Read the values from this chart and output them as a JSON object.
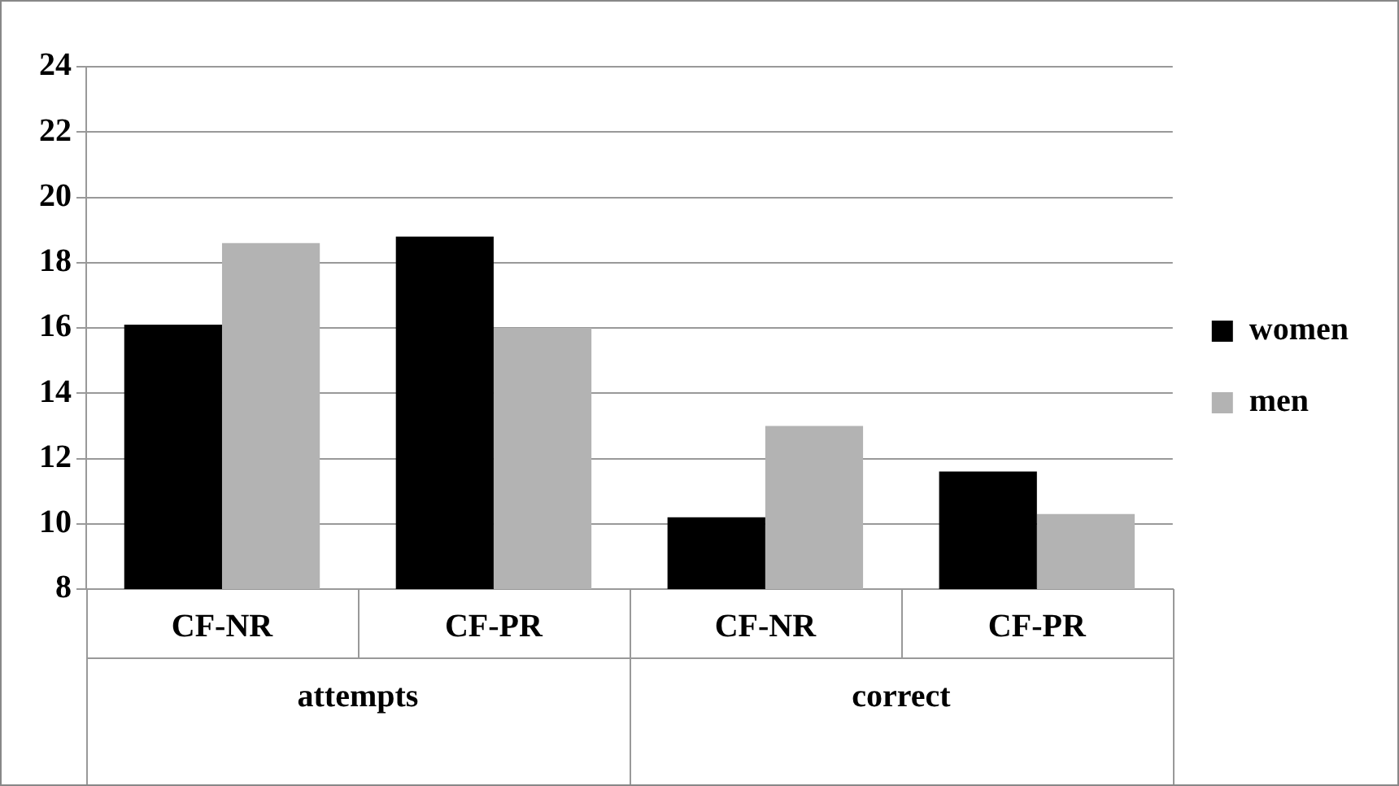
{
  "chart_data": {
    "type": "bar",
    "categories": [
      "CF-NR",
      "CF-PR",
      "CF-NR",
      "CF-PR"
    ],
    "series": [
      {
        "name": "women",
        "color": "#000000",
        "values": [
          16.1,
          18.8,
          10.2,
          11.6
        ]
      },
      {
        "name": "men",
        "color": "#b3b3b3",
        "values": [
          18.6,
          16.0,
          13.0,
          10.3
        ]
      }
    ],
    "annotations": [
      "attempts",
      "correct"
    ],
    "ylim": [
      8,
      24
    ],
    "yticks": [
      8,
      10,
      12,
      14,
      16,
      18,
      20,
      22,
      24
    ],
    "grid": "y",
    "legend": "right"
  }
}
